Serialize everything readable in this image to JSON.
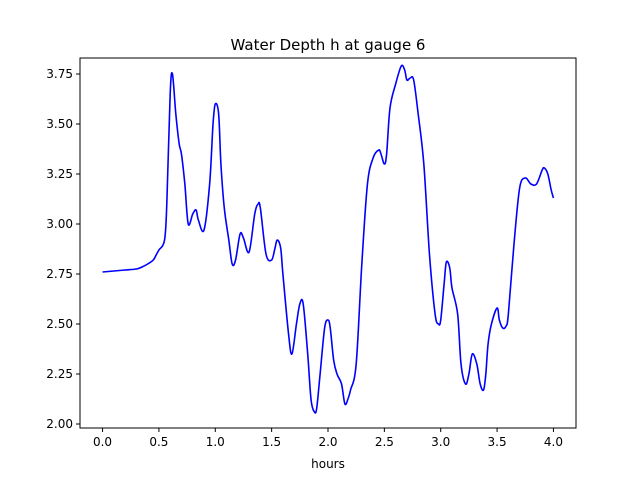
{
  "chart_data": {
    "type": "line",
    "title": "Water Depth h at gauge 6",
    "xlabel": "hours",
    "ylabel": "",
    "xlim": [
      -0.2,
      4.2
    ],
    "ylim": [
      1.98,
      3.83
    ],
    "x_ticks": [
      0.0,
      0.5,
      1.0,
      1.5,
      2.0,
      2.5,
      3.0,
      3.5,
      4.0
    ],
    "x_tick_labels": [
      "0.0",
      "0.5",
      "1.0",
      "1.5",
      "2.0",
      "2.5",
      "3.0",
      "3.5",
      "4.0"
    ],
    "y_ticks": [
      2.0,
      2.25,
      2.5,
      2.75,
      3.0,
      3.25,
      3.5,
      3.75
    ],
    "y_tick_labels": [
      "2.00",
      "2.25",
      "2.50",
      "2.75",
      "3.00",
      "3.25",
      "3.50",
      "3.75"
    ],
    "grid": false,
    "series": [
      {
        "name": "",
        "color": "#0000ff",
        "x": [
          0.0,
          0.1,
          0.2,
          0.3,
          0.35,
          0.4,
          0.45,
          0.48,
          0.5,
          0.55,
          0.57,
          0.6,
          0.62,
          0.65,
          0.68,
          0.7,
          0.73,
          0.76,
          0.8,
          0.83,
          0.85,
          0.9,
          0.95,
          0.98,
          1.0,
          1.03,
          1.05,
          1.08,
          1.12,
          1.15,
          1.18,
          1.22,
          1.25,
          1.3,
          1.35,
          1.38,
          1.4,
          1.45,
          1.5,
          1.53,
          1.55,
          1.58,
          1.6,
          1.65,
          1.68,
          1.72,
          1.75,
          1.78,
          1.82,
          1.85,
          1.88,
          1.9,
          1.93,
          1.97,
          2.0,
          2.02,
          2.05,
          2.08,
          2.12,
          2.15,
          2.18,
          2.2,
          2.25,
          2.3,
          2.35,
          2.4,
          2.45,
          2.47,
          2.5,
          2.52,
          2.55,
          2.6,
          2.65,
          2.68,
          2.7,
          2.73,
          2.76,
          2.8,
          2.85,
          2.9,
          2.95,
          2.98,
          3.0,
          3.03,
          3.05,
          3.08,
          3.1,
          3.15,
          3.18,
          3.22,
          3.25,
          3.28,
          3.32,
          3.35,
          3.38,
          3.4,
          3.42,
          3.45,
          3.5,
          3.52,
          3.55,
          3.58,
          3.6,
          3.65,
          3.7,
          3.75,
          3.8,
          3.85,
          3.9,
          3.92,
          3.95,
          3.98,
          4.0
        ],
        "values": [
          2.76,
          2.765,
          2.77,
          2.775,
          2.785,
          2.8,
          2.82,
          2.85,
          2.87,
          2.92,
          3.1,
          3.65,
          3.75,
          3.55,
          3.4,
          3.35,
          3.2,
          3.0,
          3.05,
          3.07,
          3.02,
          2.97,
          3.2,
          3.5,
          3.6,
          3.55,
          3.3,
          3.08,
          2.92,
          2.8,
          2.82,
          2.95,
          2.93,
          2.86,
          3.05,
          3.1,
          3.08,
          2.85,
          2.82,
          2.88,
          2.92,
          2.88,
          2.75,
          2.45,
          2.35,
          2.5,
          2.6,
          2.6,
          2.35,
          2.12,
          2.06,
          2.08,
          2.25,
          2.48,
          2.52,
          2.48,
          2.32,
          2.25,
          2.2,
          2.1,
          2.13,
          2.17,
          2.3,
          2.8,
          3.2,
          3.33,
          3.37,
          3.35,
          3.3,
          3.35,
          3.58,
          3.7,
          3.79,
          3.77,
          3.72,
          3.73,
          3.72,
          3.55,
          3.3,
          2.85,
          2.55,
          2.5,
          2.52,
          2.7,
          2.81,
          2.78,
          2.68,
          2.55,
          2.3,
          2.2,
          2.25,
          2.35,
          2.3,
          2.2,
          2.17,
          2.25,
          2.4,
          2.5,
          2.58,
          2.52,
          2.48,
          2.49,
          2.55,
          2.9,
          3.18,
          3.23,
          3.2,
          3.2,
          3.27,
          3.28,
          3.25,
          3.17,
          3.13
        ]
      }
    ]
  }
}
